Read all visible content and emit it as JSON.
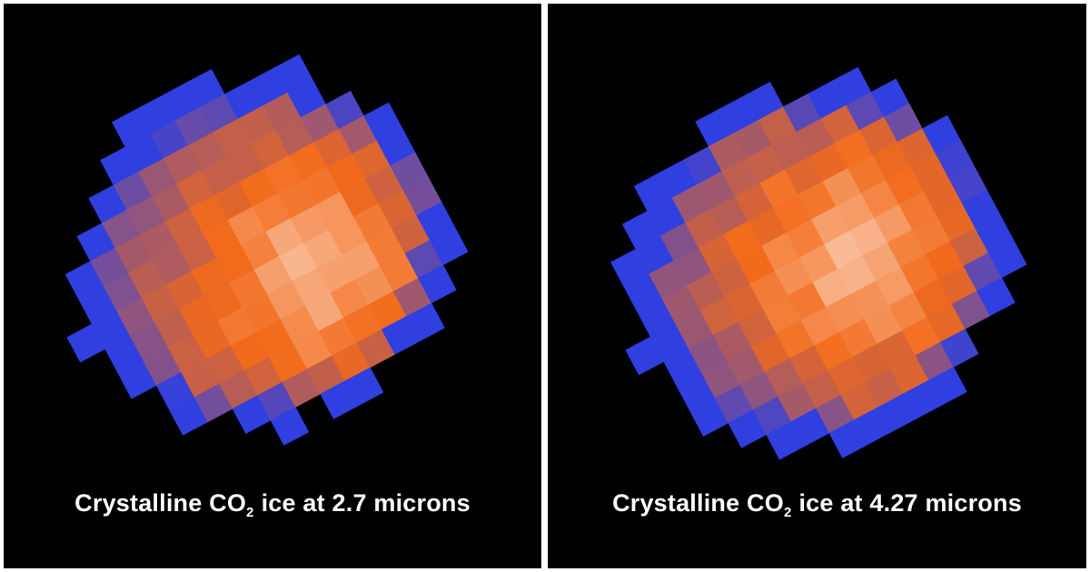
{
  "panels": [
    {
      "caption": {
        "prefix": "Crystalline CO",
        "subscript": "2",
        "suffix": "ice at 2.7 microns"
      }
    },
    {
      "caption": {
        "prefix": "Crystalline CO",
        "subscript": "2",
        "suffix": "ice at 4.27 microns"
      }
    }
  ],
  "colors": {
    "background": "#000000",
    "divider": "#ffffff",
    "low": "#2f3fe0",
    "mid": "#f26a1b",
    "high": "#ffffff",
    "caption": "#ffffff"
  }
}
